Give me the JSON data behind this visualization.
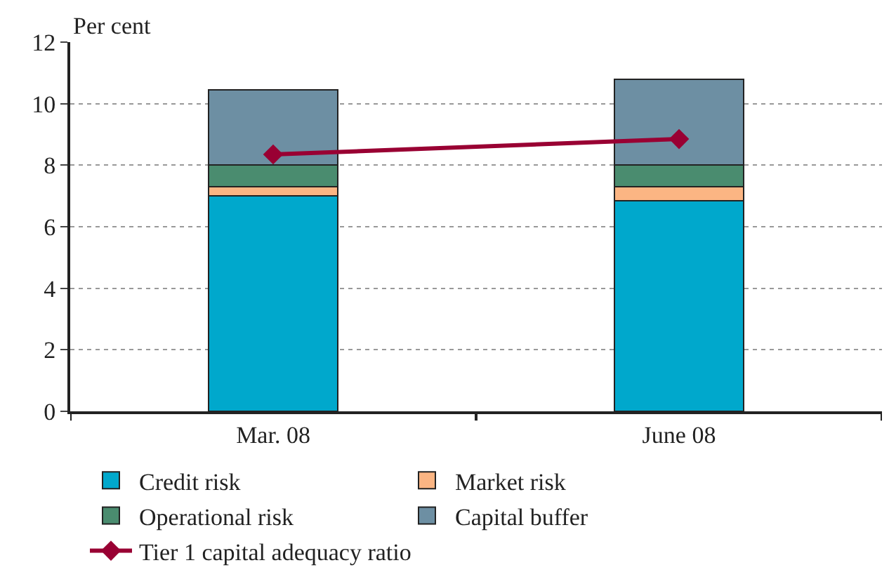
{
  "chart_data": {
    "type": "bar",
    "stacked": true,
    "ylabel": "Per cent",
    "categories": [
      "Mar. 08",
      "June 08"
    ],
    "series": [
      {
        "name": "Credit risk",
        "color": "#00a8cc",
        "values": [
          7.0,
          6.85
        ]
      },
      {
        "name": "Market risk",
        "color": "#fbb583",
        "values": [
          0.3,
          0.45
        ]
      },
      {
        "name": "Operational risk",
        "color": "#4a8c6f",
        "values": [
          0.7,
          0.7
        ]
      },
      {
        "name": "Capital buffer",
        "color": "#6d8fa3",
        "values": [
          2.45,
          2.8
        ]
      },
      {
        "name": "Tier 1 capital adequacy ratio",
        "type": "line",
        "color": "#990033",
        "marker": "diamond",
        "values": [
          8.35,
          8.85
        ]
      }
    ],
    "ylim": [
      0,
      12
    ],
    "yticks": [
      0,
      2,
      4,
      6,
      8,
      10,
      12
    ],
    "grid": "y",
    "legend": "bottom"
  }
}
